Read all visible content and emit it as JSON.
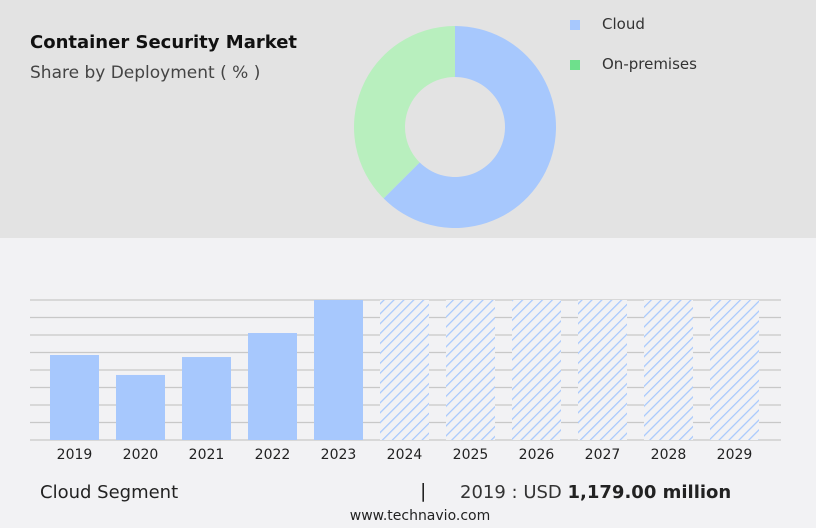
{
  "header": {
    "title": "Container Security Market",
    "subtitle": "Share by Deployment ( % )"
  },
  "donut": {
    "type": "pie",
    "slices": [
      {
        "label": "Cloud",
        "value": 62.5,
        "color": "#a7c8fd"
      },
      {
        "label": "On-premises",
        "value": 37.5,
        "color": "#b8efbe"
      }
    ],
    "legend_colors": [
      "#a7c8fd",
      "#6ee08c"
    ],
    "legend_position": "top-right"
  },
  "chart_data": {
    "type": "bar",
    "categories": [
      "2019",
      "2020",
      "2021",
      "2022",
      "2023",
      "2024",
      "2025",
      "2026",
      "2027",
      "2028",
      "2029"
    ],
    "values": [
      1179,
      902,
      1151,
      1484,
      1942,
      null,
      null,
      null,
      null,
      null,
      null
    ],
    "forecast_categories": [
      "2024",
      "2025",
      "2026",
      "2027",
      "2028",
      "2029"
    ],
    "bar_color": "#a7c8fd",
    "grid": true,
    "ylim": [
      0,
      1942
    ]
  },
  "footer": {
    "segment": "Cloud Segment",
    "separator": "|",
    "year_label": "2019 : USD",
    "value": "1,179.00 million",
    "site": "www.technavio.com"
  }
}
